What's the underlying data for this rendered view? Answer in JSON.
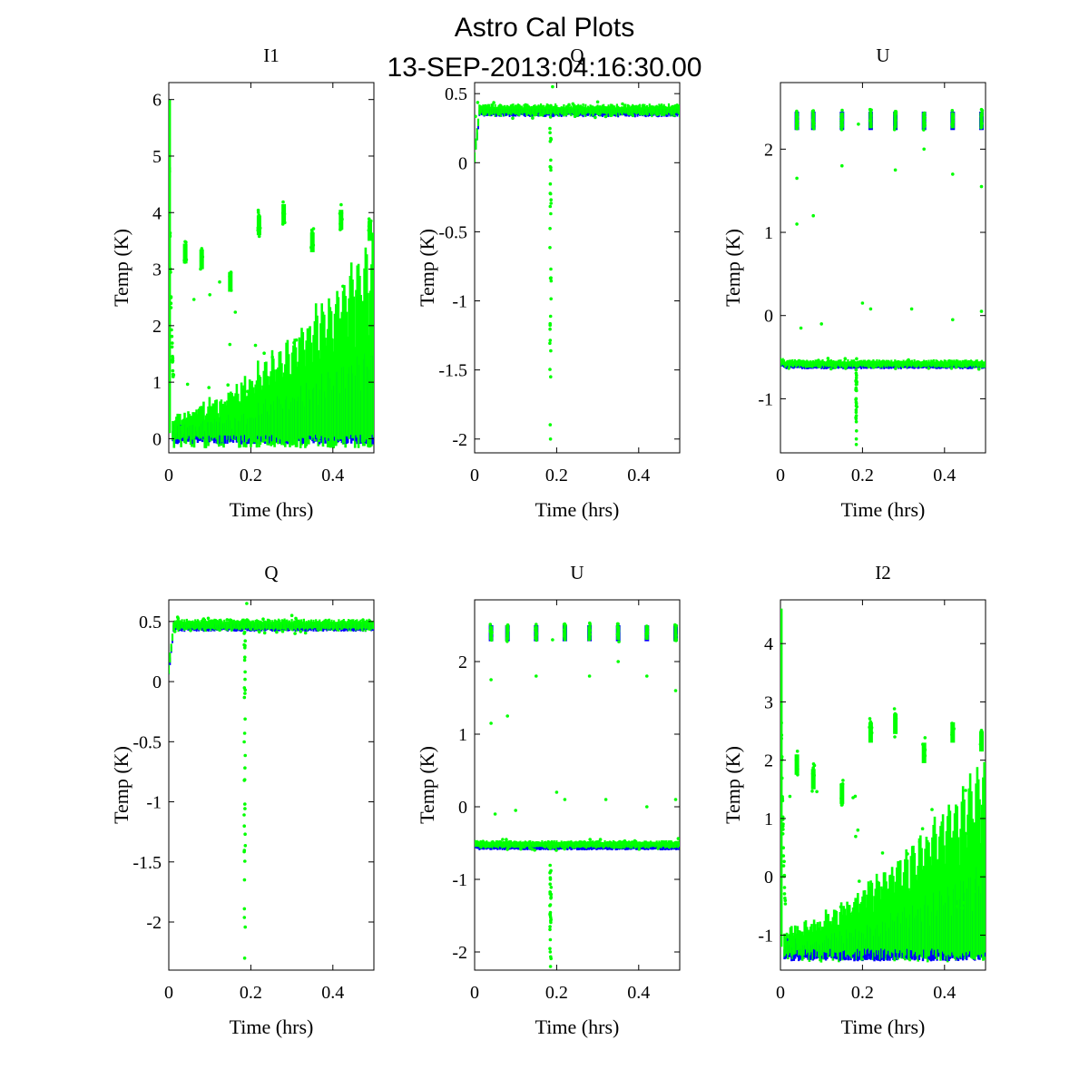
{
  "figure": {
    "title_line1": "Astro Cal Plots",
    "title_line2": "13-SEP-2013:04:16:30.00"
  },
  "colors": {
    "series_blue": "#0000ff",
    "series_green": "#00ff00"
  },
  "chart_data": [
    {
      "type": "scatter",
      "title": "I1",
      "xlabel": "Time (hrs)",
      "ylabel": "Temp (K)",
      "xlim": [
        0,
        0.5
      ],
      "ylim": [
        -0.25,
        6.3
      ],
      "xticks": [
        "0",
        "0.2",
        "0.4"
      ],
      "xtick_values": [
        0,
        0.2,
        0.4
      ],
      "yticks": [
        "0",
        "1",
        "2",
        "3",
        "4",
        "5",
        "6"
      ],
      "ytick_values": [
        0,
        1,
        2,
        3,
        4,
        5,
        6
      ],
      "kind": "intensity",
      "baseline": 0.1,
      "blue_baseline": 0.05,
      "noise": 0.12,
      "spike_start": 6.0,
      "spike_tau": 0.006,
      "cal_events": [
        [
          0.04,
          3.3
        ],
        [
          0.08,
          3.2
        ],
        [
          0.15,
          2.8
        ],
        [
          0.22,
          3.8
        ],
        [
          0.28,
          4.0
        ],
        [
          0.35,
          3.5
        ],
        [
          0.42,
          3.9
        ],
        [
          0.49,
          3.7
        ]
      ],
      "osc_growth": 3.2
    },
    {
      "type": "scatter",
      "title": "Q",
      "xlabel": "Time (hrs)",
      "ylabel": "Temp (K)",
      "xlim": [
        0,
        0.5
      ],
      "ylim": [
        -2.1,
        0.58
      ],
      "xticks": [
        "0",
        "0.2",
        "0.4"
      ],
      "xtick_values": [
        0,
        0.2,
        0.4
      ],
      "yticks": [
        "0.5",
        "0",
        "-0.5",
        "-1",
        "-1.5",
        "-2"
      ],
      "ytick_values": [
        0.5,
        0,
        -0.5,
        -1,
        -1.5,
        -2
      ],
      "kind": "band",
      "baseline": 0.38,
      "blue_baseline": 0.37,
      "noise": 0.035,
      "start_value": 0.05,
      "dip_time": 0.185,
      "dip_min": -2.0,
      "outliers": [
        [
          0.19,
          0.55
        ],
        [
          0.23,
          0.42
        ],
        [
          0.3,
          0.44
        ]
      ]
    },
    {
      "type": "scatter",
      "title": "U",
      "xlabel": "Time (hrs)",
      "ylabel": "Temp (K)",
      "xlim": [
        0,
        0.5
      ],
      "ylim": [
        -1.65,
        2.8
      ],
      "xticks": [
        "0",
        "0.2",
        "0.4"
      ],
      "xtick_values": [
        0,
        0.2,
        0.4
      ],
      "yticks": [
        "2",
        "1",
        "0",
        "-1"
      ],
      "ytick_values": [
        2,
        1,
        0,
        -1
      ],
      "kind": "band",
      "baseline": -0.58,
      "blue_baseline": -0.6,
      "noise": 0.04,
      "start_value": -0.55,
      "dip_time": 0.185,
      "dip_min": -1.55,
      "cal_cluster": 2.35,
      "cal_events": [
        [
          0.04,
          2.35
        ],
        [
          0.08,
          2.35
        ],
        [
          0.15,
          2.35
        ],
        [
          0.22,
          2.35
        ],
        [
          0.28,
          2.35
        ],
        [
          0.35,
          2.35
        ],
        [
          0.42,
          2.35
        ],
        [
          0.49,
          2.35
        ]
      ],
      "outliers": [
        [
          0.04,
          1.65
        ],
        [
          0.04,
          1.1
        ],
        [
          0.08,
          1.2
        ],
        [
          0.15,
          1.8
        ],
        [
          0.19,
          2.3
        ],
        [
          0.28,
          1.75
        ],
        [
          0.35,
          2.0
        ],
        [
          0.42,
          1.7
        ],
        [
          0.49,
          1.55
        ],
        [
          0.05,
          -0.15
        ],
        [
          0.1,
          -0.1
        ],
        [
          0.2,
          0.15
        ],
        [
          0.22,
          0.08
        ],
        [
          0.32,
          0.08
        ],
        [
          0.42,
          -0.05
        ],
        [
          0.49,
          0.05
        ]
      ]
    },
    {
      "type": "scatter",
      "title": "Q",
      "xlabel": "Time (hrs)",
      "ylabel": "Temp (K)",
      "xlim": [
        0,
        0.5
      ],
      "ylim": [
        -2.4,
        0.68
      ],
      "xticks": [
        "0",
        "0.2",
        "0.4"
      ],
      "xtick_values": [
        0,
        0.2,
        0.4
      ],
      "yticks": [
        "0.5",
        "0",
        "-0.5",
        "-1",
        "-1.5",
        "-2"
      ],
      "ytick_values": [
        0.5,
        0,
        -0.5,
        -1,
        -1.5,
        -2
      ],
      "kind": "band",
      "baseline": 0.47,
      "blue_baseline": 0.46,
      "noise": 0.04,
      "start_value": 0.1,
      "dip_time": 0.185,
      "dip_min": -2.3,
      "outliers": [
        [
          0.19,
          0.65
        ],
        [
          0.23,
          0.52
        ],
        [
          0.3,
          0.55
        ]
      ]
    },
    {
      "type": "scatter",
      "title": "U",
      "xlabel": "Time (hrs)",
      "ylabel": "Temp (K)",
      "xlim": [
        0,
        0.5
      ],
      "ylim": [
        -2.25,
        2.85
      ],
      "xticks": [
        "0",
        "0.2",
        "0.4"
      ],
      "xtick_values": [
        0,
        0.2,
        0.4
      ],
      "yticks": [
        "2",
        "1",
        "0",
        "-1",
        "-2"
      ],
      "ytick_values": [
        2,
        1,
        0,
        -1,
        -2
      ],
      "kind": "band",
      "baseline": -0.52,
      "blue_baseline": -0.55,
      "noise": 0.045,
      "start_value": -0.5,
      "dip_time": 0.185,
      "dip_min": -2.2,
      "cal_cluster": 2.4,
      "cal_events": [
        [
          0.04,
          2.4
        ],
        [
          0.08,
          2.4
        ],
        [
          0.15,
          2.4
        ],
        [
          0.22,
          2.4
        ],
        [
          0.28,
          2.4
        ],
        [
          0.35,
          2.4
        ],
        [
          0.42,
          2.4
        ],
        [
          0.49,
          2.4
        ]
      ],
      "outliers": [
        [
          0.04,
          1.75
        ],
        [
          0.04,
          1.15
        ],
        [
          0.08,
          1.25
        ],
        [
          0.15,
          1.8
        ],
        [
          0.19,
          2.3
        ],
        [
          0.28,
          1.8
        ],
        [
          0.35,
          2.0
        ],
        [
          0.42,
          1.8
        ],
        [
          0.49,
          1.6
        ],
        [
          0.05,
          -0.1
        ],
        [
          0.1,
          -0.05
        ],
        [
          0.2,
          0.2
        ],
        [
          0.22,
          0.1
        ],
        [
          0.32,
          0.1
        ],
        [
          0.42,
          0.0
        ],
        [
          0.49,
          0.1
        ]
      ]
    },
    {
      "type": "scatter",
      "title": "I2",
      "xlabel": "Time (hrs)",
      "ylabel": "Temp (K)",
      "xlim": [
        0,
        0.5
      ],
      "ylim": [
        -1.6,
        4.75
      ],
      "xticks": [
        "0",
        "0.2",
        "0.4"
      ],
      "xtick_values": [
        0,
        0.2,
        0.4
      ],
      "yticks": [
        "4",
        "3",
        "2",
        "1",
        "0",
        "-1"
      ],
      "ytick_values": [
        4,
        3,
        2,
        1,
        0,
        -1
      ],
      "kind": "intensity",
      "baseline": -1.2,
      "blue_baseline": -1.3,
      "noise": 0.12,
      "spike_start": 4.6,
      "spike_tau": 0.006,
      "cal_events": [
        [
          0.04,
          1.95
        ],
        [
          0.08,
          1.7
        ],
        [
          0.15,
          1.45
        ],
        [
          0.22,
          2.5
        ],
        [
          0.28,
          2.65
        ],
        [
          0.35,
          2.15
        ],
        [
          0.42,
          2.5
        ],
        [
          0.49,
          2.35
        ]
      ],
      "osc_growth": 3.0
    }
  ]
}
